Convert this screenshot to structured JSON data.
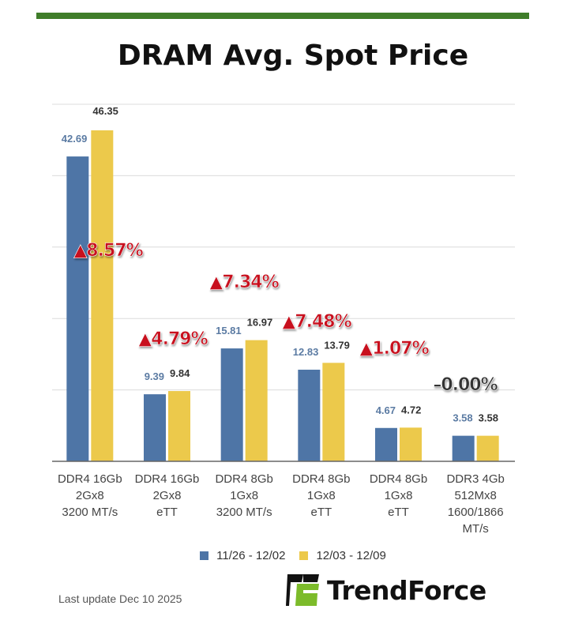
{
  "title": "DRAM Avg. Spot Price",
  "chart_data": {
    "type": "bar",
    "title": "DRAM Avg. Spot Price",
    "categories": [
      [
        "DDR4 16Gb",
        "2Gx8",
        "3200 MT/s"
      ],
      [
        "DDR4 16Gb",
        "2Gx8",
        "eTT"
      ],
      [
        "DDR4 8Gb",
        "1Gx8",
        "3200 MT/s"
      ],
      [
        "DDR4 8Gb",
        "1Gx8",
        "eTT"
      ],
      [
        "DDR4 8Gb",
        "1Gx8",
        "eTT"
      ],
      [
        "DDR3 4Gb",
        "512Mx8",
        "1600/1866",
        "MT/s"
      ]
    ],
    "series": [
      {
        "name": "11/26 - 12/02",
        "color": "#4e75a6",
        "values": [
          42.69,
          9.39,
          15.81,
          12.83,
          4.67,
          3.58
        ],
        "labels": [
          "42.69",
          "9.39",
          "15.81",
          "12.83",
          "4.67",
          "3.58"
        ]
      },
      {
        "name": "12/03 - 12/09",
        "color": "#ecc94b",
        "values": [
          46.35,
          9.84,
          16.97,
          13.79,
          4.72,
          3.58
        ],
        "labels": [
          "46.35",
          "9.84",
          "16.97",
          "13.79",
          "4.72",
          "3.58"
        ]
      }
    ],
    "annotations": [
      "▲8.57%",
      "▲4.79%",
      "▲7.34%",
      "▲7.48%",
      "▲1.07%",
      "–0.00%"
    ],
    "annotation_colors": [
      "#c8101e",
      "#c8101e",
      "#c8101e",
      "#c8101e",
      "#c8101e",
      "#333333"
    ],
    "ylim": [
      0,
      50
    ],
    "yticks": [
      0,
      10,
      20,
      30,
      40,
      50
    ],
    "grid": true,
    "legend": "bottom",
    "xlabel": "",
    "ylabel": ""
  },
  "footer": "Last update Dec 10 2025",
  "logo": {
    "text": "TrendForce",
    "colors": [
      "#111111",
      "#7cbb2a"
    ]
  },
  "brand_bar_color": "#3f7d2a"
}
